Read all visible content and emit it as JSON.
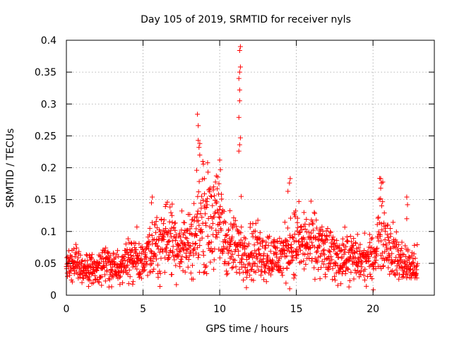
{
  "chart_data": {
    "type": "scatter",
    "title": "Day 105 of 2019, SRMTID for receiver nyls",
    "xlabel": "GPS time / hours",
    "ylabel": "SRMTID / TECUs",
    "xlim": [
      0,
      24
    ],
    "ylim": [
      0,
      0.4
    ],
    "xticks": [
      0,
      5,
      10,
      15,
      20
    ],
    "yticks": [
      0,
      0.05,
      0.1,
      0.15,
      0.2,
      0.25,
      0.3,
      0.35,
      0.4
    ],
    "xtick_labels": [
      "0",
      "5",
      "10",
      "15",
      "20"
    ],
    "ytick_labels": [
      "0",
      "0.05",
      "0.1",
      "0.15",
      "0.2",
      "0.25",
      "0.3",
      "0.35",
      "0.4"
    ],
    "grid": true,
    "marker": "+",
    "color": "#ff0000",
    "series": [
      {
        "name": "SRMTID",
        "trend": [
          [
            0.0,
            0.045
          ],
          [
            0.5,
            0.05
          ],
          [
            1.0,
            0.04
          ],
          [
            1.5,
            0.04
          ],
          [
            2.0,
            0.035
          ],
          [
            2.5,
            0.05
          ],
          [
            3.0,
            0.045
          ],
          [
            3.5,
            0.045
          ],
          [
            4.0,
            0.06
          ],
          [
            4.5,
            0.06
          ],
          [
            5.0,
            0.045
          ],
          [
            5.5,
            0.07
          ],
          [
            6.0,
            0.08
          ],
          [
            6.5,
            0.095
          ],
          [
            7.0,
            0.085
          ],
          [
            7.5,
            0.08
          ],
          [
            8.0,
            0.08
          ],
          [
            8.5,
            0.1
          ],
          [
            9.0,
            0.12
          ],
          [
            9.5,
            0.12
          ],
          [
            10.0,
            0.11
          ],
          [
            10.5,
            0.08
          ],
          [
            11.0,
            0.075
          ],
          [
            11.5,
            0.07
          ],
          [
            12.0,
            0.07
          ],
          [
            12.5,
            0.07
          ],
          [
            13.0,
            0.065
          ],
          [
            13.5,
            0.06
          ],
          [
            14.0,
            0.06
          ],
          [
            14.5,
            0.075
          ],
          [
            15.0,
            0.085
          ],
          [
            15.5,
            0.08
          ],
          [
            16.0,
            0.08
          ],
          [
            16.5,
            0.075
          ],
          [
            17.0,
            0.065
          ],
          [
            17.5,
            0.06
          ],
          [
            18.0,
            0.06
          ],
          [
            18.5,
            0.06
          ],
          [
            19.0,
            0.055
          ],
          [
            19.5,
            0.055
          ],
          [
            20.0,
            0.055
          ],
          [
            20.5,
            0.11
          ],
          [
            21.0,
            0.08
          ],
          [
            21.5,
            0.06
          ],
          [
            22.0,
            0.05
          ],
          [
            22.5,
            0.045
          ],
          [
            22.9,
            0.045
          ]
        ],
        "peaks": [
          [
            8.55,
            0.284
          ],
          [
            8.6,
            0.266
          ],
          [
            8.6,
            0.243
          ],
          [
            8.7,
            0.238
          ],
          [
            8.65,
            0.232
          ],
          [
            8.7,
            0.22
          ],
          [
            8.5,
            0.196
          ],
          [
            8.9,
            0.21
          ],
          [
            9.0,
            0.183
          ],
          [
            10.0,
            0.212
          ],
          [
            10.05,
            0.197
          ],
          [
            9.95,
            0.175
          ],
          [
            11.35,
            0.39
          ],
          [
            11.3,
            0.384
          ],
          [
            11.35,
            0.358
          ],
          [
            11.3,
            0.35
          ],
          [
            11.25,
            0.34
          ],
          [
            11.3,
            0.322
          ],
          [
            11.3,
            0.305
          ],
          [
            11.25,
            0.279
          ],
          [
            11.35,
            0.247
          ],
          [
            11.3,
            0.236
          ],
          [
            11.25,
            0.226
          ],
          [
            11.4,
            0.155
          ],
          [
            14.6,
            0.183
          ],
          [
            14.55,
            0.176
          ],
          [
            14.45,
            0.163
          ],
          [
            20.5,
            0.183
          ],
          [
            20.55,
            0.176
          ],
          [
            20.5,
            0.168
          ],
          [
            22.2,
            0.154
          ],
          [
            22.25,
            0.142
          ],
          [
            22.2,
            0.12
          ],
          [
            5.6,
            0.154
          ],
          [
            5.55,
            0.145
          ],
          [
            9.3,
            0.165
          ],
          [
            9.6,
            0.17
          ],
          [
            4.6,
            0.107
          ],
          [
            6.9,
            0.143
          ]
        ],
        "point_count": 1600,
        "x_range": [
          0,
          22.9
        ]
      }
    ]
  }
}
